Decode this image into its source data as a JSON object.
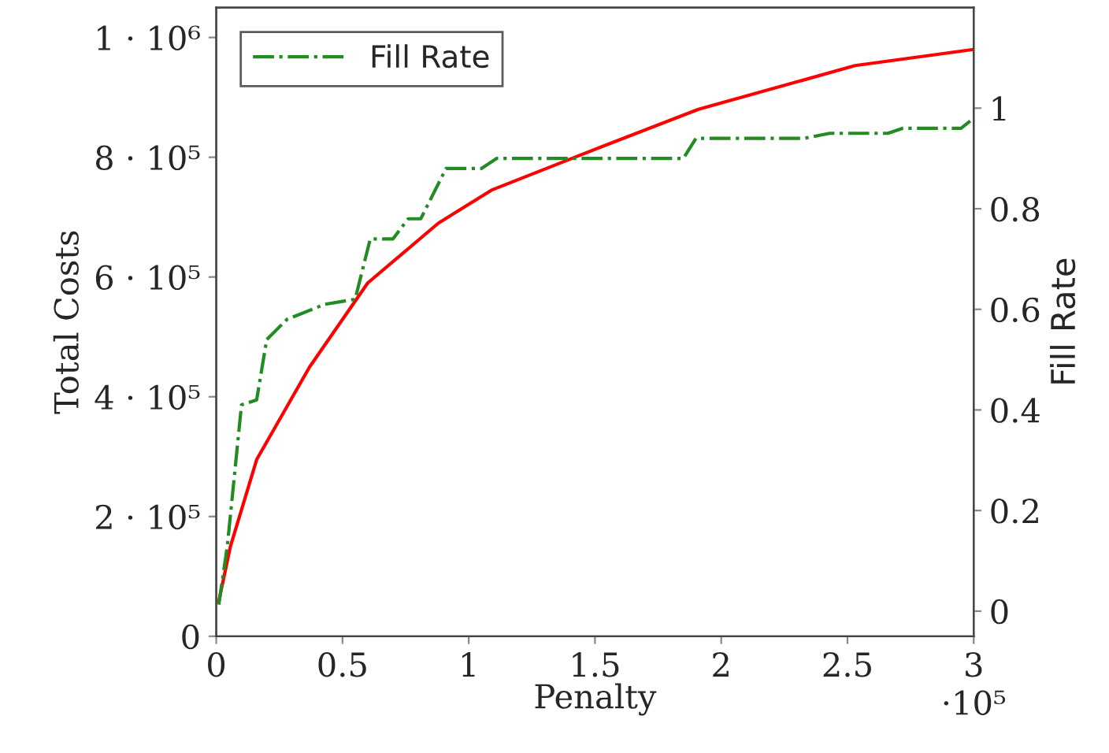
{
  "chart_data": {
    "type": "line",
    "xlabel": "Penalty",
    "ylabel": "Total Costs",
    "y2label": "Fill Rate",
    "xlim": [
      0,
      3
    ],
    "xticks": [
      0,
      0.5,
      1,
      1.5,
      2,
      2.5,
      3
    ],
    "ylim": [
      0,
      1050000
    ],
    "yticks": [
      {
        "value": 0,
        "label": "0"
      },
      {
        "value": 200000,
        "label": "2 · 10⁵"
      },
      {
        "value": 400000,
        "label": "4 · 10⁵"
      },
      {
        "value": 600000,
        "label": "6 · 10⁵"
      },
      {
        "value": 800000,
        "label": "8 · 10⁵"
      },
      {
        "value": 1000000,
        "label": "1 · 10⁶"
      }
    ],
    "y2lim": [
      -0.05,
      1.2
    ],
    "y2ticks": [
      0,
      0.2,
      0.4,
      0.6,
      0.8,
      1
    ],
    "annotations": [
      "·10⁵"
    ],
    "grid": false,
    "legend": "top left",
    "series": [
      {
        "color": "#ff0000",
        "line_style": "solid",
        "x": [
          0.01,
          0.056,
          0.16,
          0.37,
          0.6,
          0.88,
          1.09,
          1.45,
          1.91,
          2.53,
          3.0
        ],
        "values": [
          58000,
          150000,
          295000,
          450000,
          590000,
          690000,
          745000,
          805000,
          880000,
          953000,
          980000
        ]
      },
      {
        "name": "Fill Rate",
        "color": "#228b22",
        "line_style": "dashdot",
        "axis": "y2",
        "x": [
          0.01,
          0.044,
          0.1,
          0.16,
          0.2,
          0.28,
          0.43,
          0.55,
          0.61,
          0.7,
          0.76,
          0.81,
          0.91,
          1.05,
          1.11,
          1.85,
          1.9,
          2.33,
          2.43,
          2.66,
          2.72,
          2.95,
          3.0
        ],
        "values": [
          0.013,
          0.13,
          0.41,
          0.42,
          0.54,
          0.58,
          0.61,
          0.62,
          0.74,
          0.74,
          0.78,
          0.78,
          0.88,
          0.88,
          0.9,
          0.9,
          0.94,
          0.94,
          0.95,
          0.95,
          0.96,
          0.96,
          0.98
        ]
      }
    ]
  }
}
